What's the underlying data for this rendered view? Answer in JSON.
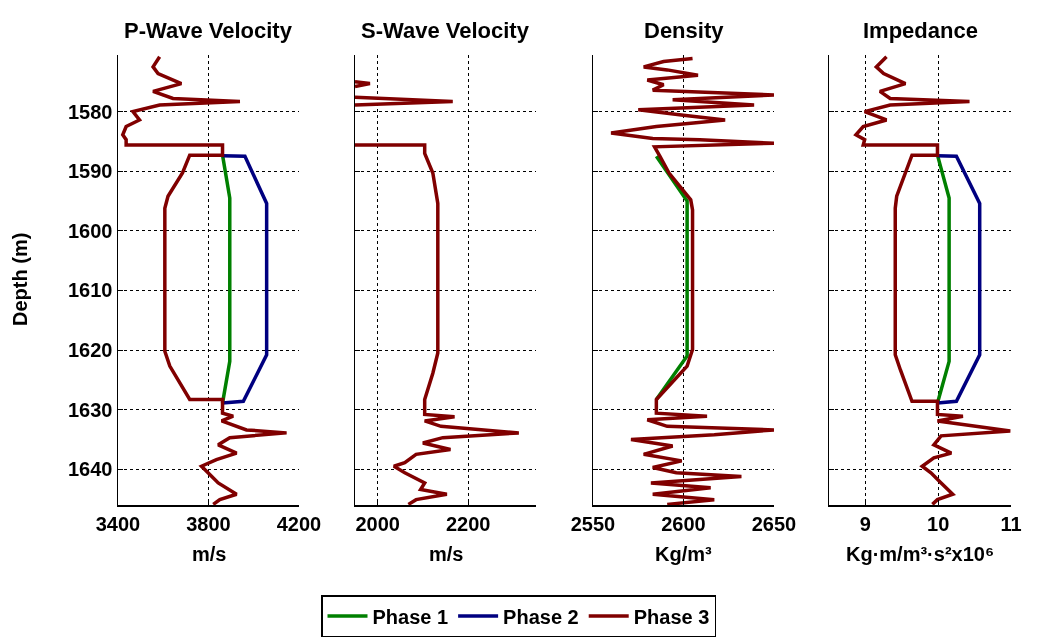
{
  "chart_data": [
    {
      "type": "line",
      "title": "P-Wave Velocity",
      "xlabel": "m/s",
      "ylabel": "Depth (m)",
      "xlim": [
        3400,
        4200
      ],
      "xticks": [
        3400,
        3800,
        4200
      ],
      "ylim": [
        1646,
        1570.5
      ],
      "yticks": [
        1580,
        1590,
        1600,
        1610,
        1620,
        1630,
        1640
      ],
      "grid": true,
      "legend": "bottom",
      "series": [
        {
          "name": "Phase 1",
          "color": "#008000",
          "x": [
            3862,
            3894,
            3894,
            3862
          ],
          "values": [
            1587.3,
            1594.5,
            1621.9,
            1628.9
          ]
        },
        {
          "name": "Phase 2",
          "color": "#000080",
          "x": [
            3862,
            3961,
            4057,
            4057,
            3954,
            3862
          ],
          "values": [
            1587.4,
            1587.5,
            1595.4,
            1620.8,
            1628.6,
            1628.9
          ]
        },
        {
          "name": "Phase 3",
          "color": "#800000",
          "x": [
            3584,
            3555,
            3577,
            3680,
            3555,
            3643,
            3939,
            3584,
            3466,
            3495,
            3436,
            3421,
            3436,
            3436,
            3862,
            3862,
            3717,
            3685,
            3621,
            3607,
            3607,
            3629,
            3717,
            3862,
            3862,
            3909,
            3858,
            3968,
            4145,
            3894,
            3843,
            3924,
            3835,
            3769,
            3798,
            3843,
            3924,
            3850,
            3821
          ],
          "values": [
            1570.8,
            1572.5,
            1573.6,
            1575.3,
            1576.6,
            1577.8,
            1578.3,
            1578.9,
            1580,
            1581.4,
            1582.5,
            1583.9,
            1584.7,
            1585.6,
            1585.6,
            1587.3,
            1587.3,
            1590.3,
            1594.2,
            1596.2,
            1620.2,
            1622.7,
            1628.3,
            1628.3,
            1630.6,
            1631.1,
            1631.9,
            1633.4,
            1633.9,
            1634.7,
            1635.9,
            1637.3,
            1638.4,
            1639.5,
            1640.6,
            1642.3,
            1644.2,
            1645.1,
            1645.9
          ]
        }
      ]
    },
    {
      "type": "line",
      "title": "S-Wave Velocity",
      "xlabel": "m/s",
      "xlim": [
        1950,
        2350
      ],
      "xticks": [
        2000,
        2200
      ],
      "ylim": [
        1646,
        1570.5
      ],
      "yticks": [
        1580,
        1590,
        1600,
        1610,
        1620,
        1630,
        1640
      ],
      "grid": true,
      "legend": "bottom",
      "tick_labels": "x",
      "series": [
        {
          "name": "Phase 3",
          "color": "#800000",
          "x": [
            1950,
            1983,
            1950,
            null,
            1950,
            2166,
            1950,
            null,
            1950,
            2104,
            2104,
            2122,
            2133,
            2133,
            2122,
            2104,
            2104,
            2170,
            2104,
            2140,
            2312,
            2144,
            2100,
            2161,
            2085,
            2060,
            2036,
            2060,
            2104,
            2095,
            2153,
            2085,
            2068
          ],
          "values": [
            1575.0,
            1575.3,
            1575.8,
            null,
            1577.6,
            1578.3,
            1578.9,
            null,
            1585.6,
            1585.6,
            1587.0,
            1590.3,
            1595.4,
            1620.5,
            1623.9,
            1628.3,
            1630.8,
            1631.2,
            1631.9,
            1632.8,
            1633.9,
            1634.7,
            1635.6,
            1636.7,
            1637.5,
            1638.9,
            1639.5,
            1640.6,
            1642.3,
            1643.4,
            1644.2,
            1645.1,
            1645.9
          ]
        }
      ]
    },
    {
      "type": "line",
      "title": "Density",
      "xlabel": "Kg/m³",
      "xlim": [
        2550,
        2650
      ],
      "xticks": [
        2550,
        2600,
        2650
      ],
      "ylim": [
        1646,
        1570.5
      ],
      "yticks": [
        1580,
        1590,
        1600,
        1610,
        1620,
        1630,
        1640
      ],
      "grid": true,
      "legend": "bottom",
      "tick_labels": "x",
      "series": [
        {
          "name": "Phase 1",
          "color": "#008000",
          "x": [
            2585,
            2602,
            2602,
            2585
          ],
          "values": [
            1587.5,
            1595.0,
            1621.0,
            1628.3
          ]
        },
        {
          "name": "Phase 3",
          "color": "#800000",
          "x": [
            2605,
            2589,
            2578,
            2591,
            2608,
            2580,
            2589,
            2583,
            2650,
            2594,
            2639,
            2575,
            2600,
            2623,
            2585,
            2560,
            2583,
            2609,
            2650,
            2584,
            2587,
            2592,
            2604,
            2605,
            2605,
            2602,
            2585,
            2585,
            2613,
            2580,
            2591,
            2650,
            2617,
            2571,
            2594,
            2578,
            2599,
            2583,
            2596,
            2632,
            2582,
            2615,
            2583,
            2617,
            2591
          ],
          "values": [
            1571.1,
            1571.6,
            1572.5,
            1573.0,
            1573.9,
            1574.7,
            1575.5,
            1576.4,
            1577.2,
            1578.0,
            1578.9,
            1579.7,
            1580.6,
            1581.4,
            1582.5,
            1583.6,
            1584.5,
            1584.7,
            1585.3,
            1585.9,
            1587.5,
            1590.3,
            1594.8,
            1596.5,
            1619.9,
            1622.7,
            1628.3,
            1630.6,
            1631.1,
            1631.7,
            1632.8,
            1633.4,
            1634.2,
            1635.0,
            1636.1,
            1637.5,
            1638.6,
            1639.7,
            1640.6,
            1641.2,
            1642.3,
            1643.1,
            1644.2,
            1645.1,
            1645.9
          ]
        }
      ]
    },
    {
      "type": "line",
      "title": "Impedance",
      "xlabel": "Kg·m/m³·s²x10⁶",
      "xlim": [
        8.5,
        11
      ],
      "xticks": [
        9,
        10,
        11
      ],
      "ylim": [
        1646,
        1570.5
      ],
      "yticks": [
        1580,
        1590,
        1600,
        1610,
        1620,
        1630,
        1640
      ],
      "grid": true,
      "legend": "bottom",
      "tick_labels": "x",
      "series": [
        {
          "name": "Phase 1",
          "color": "#008000",
          "x": [
            9.99,
            10.15,
            10.15,
            9.99
          ],
          "values": [
            1587.3,
            1594.5,
            1621.9,
            1628.9
          ]
        },
        {
          "name": "Phase 2",
          "color": "#000080",
          "x": [
            9.99,
            10.25,
            10.57,
            10.57,
            10.25,
            9.99
          ],
          "values": [
            1587.4,
            1587.5,
            1595.4,
            1620.8,
            1628.6,
            1628.9
          ]
        },
        {
          "name": "Phase 3",
          "color": "#800000",
          "x": [
            9.29,
            9.15,
            9.25,
            9.55,
            9.2,
            9.34,
            10.43,
            9.34,
            8.99,
            9.29,
            8.97,
            8.87,
            8.99,
            8.97,
            9.99,
            9.99,
            9.64,
            9.43,
            9.41,
            9.41,
            9.48,
            9.64,
            9.99,
            9.99,
            10.34,
            9.99,
            10.64,
            10.99,
            10.04,
            9.94,
            10.18,
            9.94,
            9.78,
            9.9,
            10.04,
            10.2,
            9.99,
            9.92
          ],
          "values": [
            1570.8,
            1572.5,
            1573.6,
            1575.3,
            1576.6,
            1577.8,
            1578.3,
            1578.9,
            1580,
            1581.4,
            1582.5,
            1583.9,
            1584.7,
            1585.6,
            1585.6,
            1587.3,
            1587.3,
            1594.2,
            1596.2,
            1620.8,
            1623.3,
            1628.6,
            1628.6,
            1630.8,
            1631.1,
            1631.9,
            1633.0,
            1633.6,
            1634.4,
            1635.9,
            1637.3,
            1638.1,
            1639.5,
            1640.6,
            1642.3,
            1644.2,
            1645.1,
            1645.9
          ]
        }
      ]
    }
  ]
}
